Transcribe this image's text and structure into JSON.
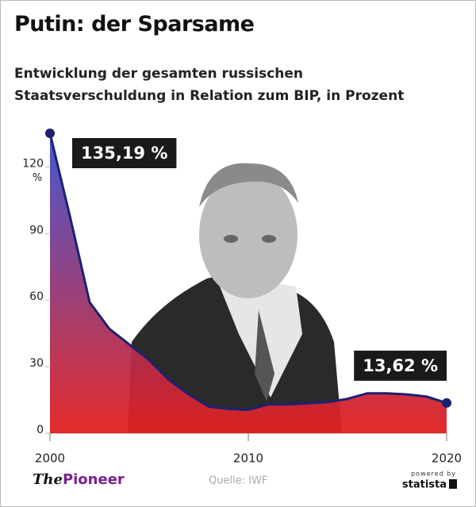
{
  "chart_data": {
    "type": "area",
    "title": "Putin: der Sparsame",
    "subtitle": "Entwicklung der gesamten russischen Staatsverschuldung in Relation zum BIP, in Prozent",
    "y_unit": "%",
    "x": [
      2000,
      2001,
      2002,
      2003,
      2004,
      2005,
      2006,
      2007,
      2008,
      2009,
      2010,
      2011,
      2012,
      2013,
      2014,
      2015,
      2016,
      2017,
      2018,
      2019,
      2020
    ],
    "values": [
      135.19,
      98,
      59,
      47,
      40,
      33,
      24,
      17.5,
      12,
      11,
      10.5,
      13,
      13,
      13.5,
      14,
      15.5,
      18,
      18,
      17.5,
      16.5,
      13.62
    ],
    "value_labels": [
      "135,19 %",
      null,
      null,
      null,
      null,
      null,
      null,
      null,
      null,
      null,
      null,
      null,
      null,
      null,
      null,
      null,
      null,
      null,
      null,
      null,
      "13,62 %"
    ],
    "color": "#1c2270",
    "gradient": [
      "#3b4fd0",
      "#e3201f"
    ],
    "xlim": [
      2000,
      2020
    ],
    "xticks": [
      2000,
      2010,
      2020
    ],
    "ylim": [
      0,
      140
    ],
    "yticks": [
      0,
      30,
      60,
      90,
      120
    ],
    "grid": false,
    "source": "Quelle: IWF",
    "logo": {
      "the": "The",
      "name": "Pioneer"
    },
    "powered": {
      "by": "powered by",
      "brand": "statista"
    }
  }
}
